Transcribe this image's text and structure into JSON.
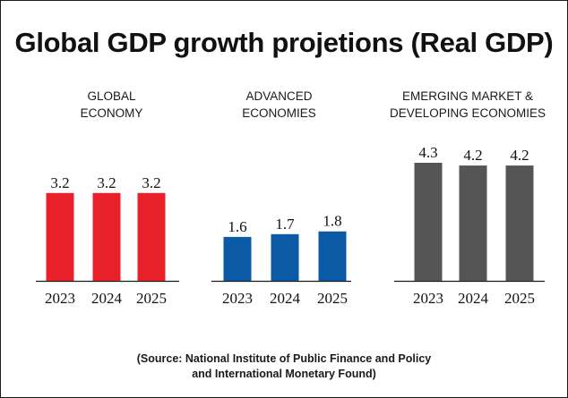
{
  "title": "Global GDP growth projetions (Real GDP)",
  "source": "(Source: National Institute of Public Finance and Policy\nand International Monetary Found)",
  "colors": {
    "global": "#e8202a",
    "advanced": "#0b5aa6",
    "emerging": "#555555"
  },
  "chart_data": [
    {
      "type": "bar",
      "title": "GLOBAL\nECONOMY",
      "categories": [
        "2023",
        "2024",
        "2025"
      ],
      "values": [
        3.2,
        3.2,
        3.2
      ],
      "value_labels": [
        "3.2",
        "3.2",
        "3.2"
      ],
      "ylim": [
        0,
        4.3
      ],
      "grid": false,
      "color": "#e8202a"
    },
    {
      "type": "bar",
      "title": "ADVANCED\nECONOMIES",
      "categories": [
        "2023",
        "2024",
        "2025"
      ],
      "values": [
        1.6,
        1.7,
        1.8
      ],
      "value_labels": [
        "1.6",
        "1.7",
        "1.8"
      ],
      "ylim": [
        0,
        4.3
      ],
      "grid": false,
      "color": "#0b5aa6"
    },
    {
      "type": "bar",
      "title": "EMERGING MARKET &\nDEVELOPING ECONOMIES",
      "categories": [
        "2023",
        "2024",
        "2025"
      ],
      "values": [
        4.3,
        4.2,
        4.2
      ],
      "value_labels": [
        "4.3",
        "4.2",
        "4.2"
      ],
      "ylim": [
        0,
        4.3
      ],
      "grid": false,
      "color": "#555555"
    }
  ]
}
